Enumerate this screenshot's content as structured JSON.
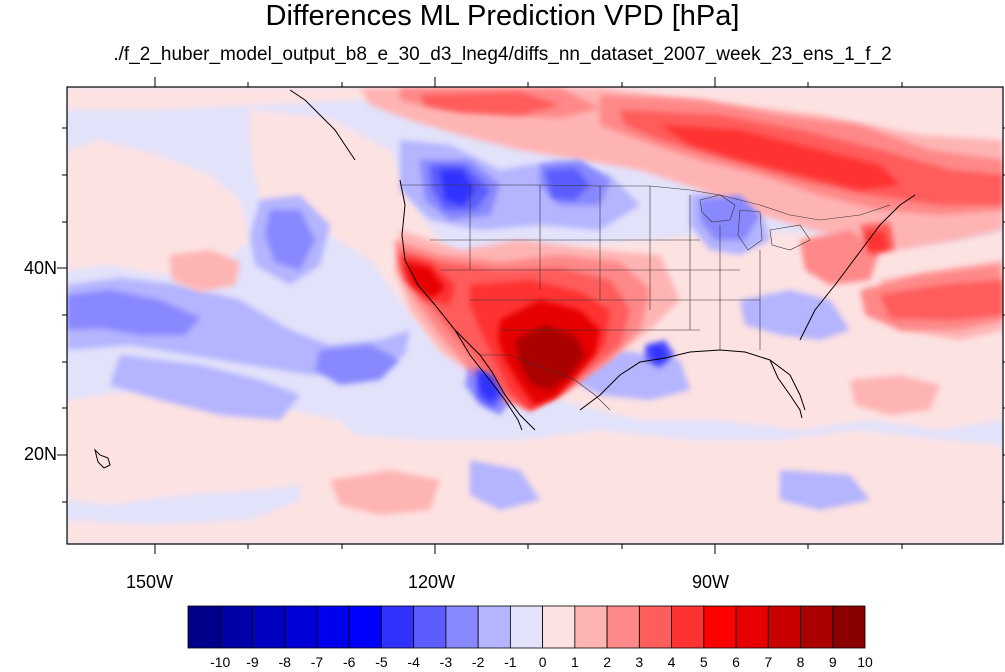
{
  "title": "Differences ML Prediction VPD [hPa]",
  "subtitle": "./f_2_huber_model_output_b8_e_30_d3_lneg4/diffs_nn_dataset_2007_week_23_ens_1_f_2",
  "axes": {
    "lon_labels": [
      "150W",
      "120W",
      "90W"
    ],
    "lat_labels": [
      "40N",
      "20N"
    ]
  },
  "colorbar": {
    "labels": [
      "-10",
      "-9",
      "-8",
      "-7",
      "-6",
      "-5",
      "-4",
      "-3",
      "-2",
      "-1",
      "0",
      "1",
      "2",
      "3",
      "4",
      "5",
      "6",
      "7",
      "8",
      "9",
      "10"
    ],
    "colors": [
      "#00008a",
      "#0000a6",
      "#0000c0",
      "#0000d8",
      "#0000ee",
      "#0000ff",
      "#3232ff",
      "#5c5cff",
      "#8888ff",
      "#b4b4ff",
      "#e2e2fb",
      "#fde2e2",
      "#ffb4b4",
      "#ff8888",
      "#ff5c5c",
      "#ff3232",
      "#ff0000",
      "#e60000",
      "#c80000",
      "#aa0000",
      "#8a0000"
    ]
  },
  "map": {
    "region": "North Pacific and contiguous United States",
    "extent": {
      "lon": [
        -160,
        -62
      ],
      "lat": [
        11,
        58
      ]
    },
    "background_color": "#e2e2fb",
    "colors": {
      "coast": "#000000",
      "border": "#333333"
    }
  }
}
